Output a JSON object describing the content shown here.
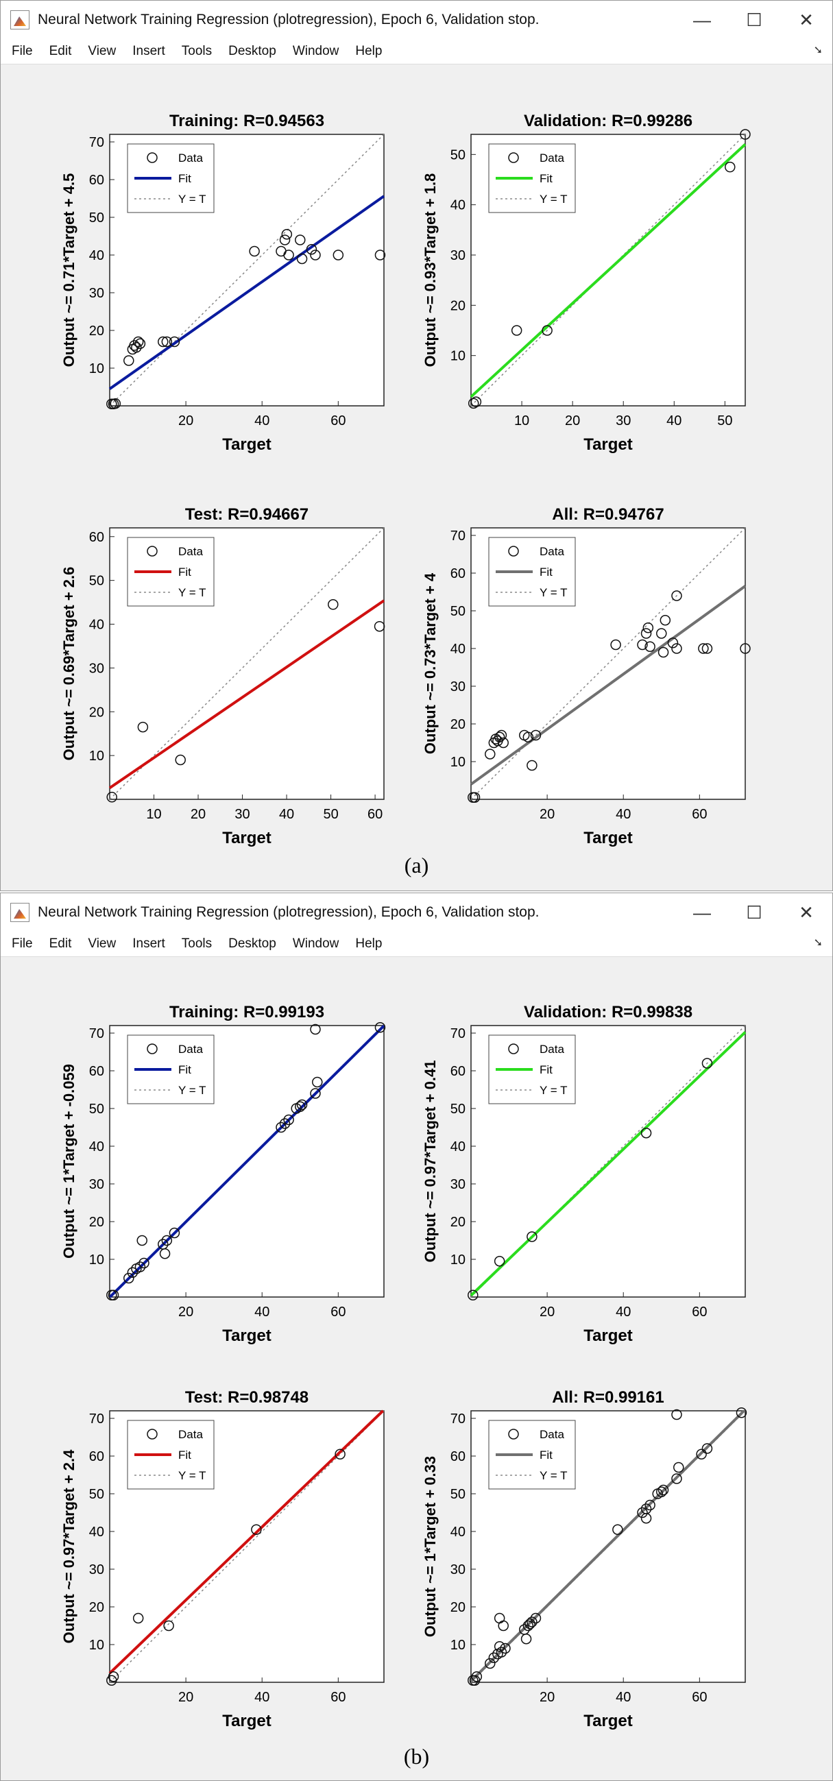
{
  "figures": [
    {
      "window_title": "Neural Network Training Regression (plotregression), Epoch 6, Validation stop.",
      "menu": [
        "File",
        "Edit",
        "View",
        "Insert",
        "Tools",
        "Desktop",
        "Window",
        "Help"
      ],
      "caption": "(a)"
    },
    {
      "window_title": "Neural Network Training Regression (plotregression), Epoch 6, Validation stop.",
      "menu": [
        "File",
        "Edit",
        "View",
        "Insert",
        "Tools",
        "Desktop",
        "Window",
        "Help"
      ],
      "caption": "(b)"
    }
  ],
  "window_controls": {
    "minimize": "—",
    "maximize": "☐",
    "close": "✕"
  },
  "legend_labels": {
    "data": "Data",
    "fit": "Fit",
    "identity": "Y = T"
  },
  "colors": {
    "training": "#0a1b9e",
    "validation": "#2bdc1e",
    "test": "#d01010",
    "all": "#707070",
    "identity": "#888888"
  },
  "chart_data": [
    {
      "type": "scatter",
      "title": "Training: R=0.94563",
      "xlabel": "Target",
      "ylabel": "Output ~= 0.71*Target + 4.5",
      "xlim": [
        0,
        72
      ],
      "ylim": [
        0,
        72
      ],
      "xticks": [
        20,
        40,
        60
      ],
      "yticks": [
        10,
        20,
        30,
        40,
        50,
        60,
        70
      ],
      "fit": {
        "slope": 0.71,
        "intercept": 4.5
      },
      "color_key": "training",
      "points": [
        [
          0.5,
          0.5
        ],
        [
          1,
          0.5
        ],
        [
          1.5,
          0.6
        ],
        [
          5,
          12
        ],
        [
          6,
          15
        ],
        [
          6.5,
          16
        ],
        [
          7,
          15.5
        ],
        [
          7.5,
          17
        ],
        [
          8,
          16.5
        ],
        [
          14,
          17
        ],
        [
          15,
          17
        ],
        [
          17,
          17
        ],
        [
          38,
          41
        ],
        [
          45,
          41
        ],
        [
          46,
          44
        ],
        [
          46.5,
          45.5
        ],
        [
          47,
          40
        ],
        [
          50,
          44
        ],
        [
          50.5,
          39
        ],
        [
          53,
          41.5
        ],
        [
          54,
          40
        ],
        [
          60,
          40
        ],
        [
          71,
          40
        ]
      ]
    },
    {
      "type": "scatter",
      "title": "Validation: R=0.99286",
      "xlabel": "Target",
      "ylabel": "Output ~= 0.93*Target + 1.8",
      "xlim": [
        0,
        54
      ],
      "ylim": [
        0,
        54
      ],
      "xticks": [
        10,
        20,
        30,
        40,
        50
      ],
      "yticks": [
        10,
        20,
        30,
        40,
        50
      ],
      "fit": {
        "slope": 0.93,
        "intercept": 1.8
      },
      "color_key": "validation",
      "points": [
        [
          0.5,
          0.5
        ],
        [
          1,
          0.8
        ],
        [
          9,
          15
        ],
        [
          15,
          15
        ],
        [
          51,
          47.5
        ],
        [
          54,
          54
        ]
      ]
    },
    {
      "type": "scatter",
      "title": "Test: R=0.94667",
      "xlabel": "Target",
      "ylabel": "Output ~= 0.69*Target + 2.6",
      "xlim": [
        0,
        62
      ],
      "ylim": [
        0,
        62
      ],
      "xticks": [
        10,
        20,
        30,
        40,
        50,
        60
      ],
      "yticks": [
        10,
        20,
        30,
        40,
        50,
        60
      ],
      "fit": {
        "slope": 0.69,
        "intercept": 2.6
      },
      "color_key": "test",
      "points": [
        [
          0.5,
          0.5
        ],
        [
          7.5,
          16.5
        ],
        [
          16,
          9
        ],
        [
          50.5,
          44.5
        ],
        [
          61,
          39.5
        ]
      ]
    },
    {
      "type": "scatter",
      "title": "All: R=0.94767",
      "xlabel": "Target",
      "ylabel": "Output ~= 0.73*Target + 4",
      "xlim": [
        0,
        72
      ],
      "ylim": [
        0,
        72
      ],
      "xticks": [
        20,
        40,
        60
      ],
      "yticks": [
        10,
        20,
        30,
        40,
        50,
        60,
        70
      ],
      "fit": {
        "slope": 0.73,
        "intercept": 4
      },
      "color_key": "all",
      "points": [
        [
          0.5,
          0.5
        ],
        [
          1,
          0.5
        ],
        [
          5,
          12
        ],
        [
          6,
          15
        ],
        [
          6.5,
          16
        ],
        [
          7,
          15.5
        ],
        [
          7.5,
          16.5
        ],
        [
          8,
          17
        ],
        [
          8.5,
          15
        ],
        [
          14,
          17
        ],
        [
          15,
          16.5
        ],
        [
          16,
          9
        ],
        [
          17,
          17
        ],
        [
          38,
          41
        ],
        [
          45,
          41
        ],
        [
          46,
          44
        ],
        [
          46.5,
          45.5
        ],
        [
          47,
          40.5
        ],
        [
          50,
          44
        ],
        [
          50.5,
          39
        ],
        [
          51,
          47.5
        ],
        [
          53,
          41.5
        ],
        [
          54,
          40
        ],
        [
          54,
          54
        ],
        [
          61,
          40
        ],
        [
          62,
          40
        ],
        [
          72,
          40
        ]
      ]
    },
    {
      "type": "scatter",
      "title": "Training: R=0.99193",
      "xlabel": "Target",
      "ylabel": "Output ~= 1*Target + -0.059",
      "xlim": [
        0,
        72
      ],
      "ylim": [
        0,
        72
      ],
      "xticks": [
        20,
        40,
        60
      ],
      "yticks": [
        10,
        20,
        30,
        40,
        50,
        60,
        70
      ],
      "fit": {
        "slope": 1,
        "intercept": -0.059
      },
      "color_key": "training",
      "points": [
        [
          0.5,
          0.5
        ],
        [
          1,
          0.5
        ],
        [
          5,
          5
        ],
        [
          6,
          6.5
        ],
        [
          7,
          7.5
        ],
        [
          8,
          8
        ],
        [
          8.5,
          15
        ],
        [
          9,
          9
        ],
        [
          14,
          14
        ],
        [
          14.5,
          11.5
        ],
        [
          15,
          15
        ],
        [
          17,
          17
        ],
        [
          45,
          45
        ],
        [
          46,
          46
        ],
        [
          47,
          47
        ],
        [
          49,
          50
        ],
        [
          50,
          50.5
        ],
        [
          50.5,
          51
        ],
        [
          54,
          54
        ],
        [
          54.5,
          57
        ],
        [
          54,
          71
        ],
        [
          71,
          71.5
        ]
      ]
    },
    {
      "type": "scatter",
      "title": "Validation: R=0.99838",
      "xlabel": "Target",
      "ylabel": "Output ~= 0.97*Target + 0.41",
      "xlim": [
        0,
        72
      ],
      "ylim": [
        0,
        72
      ],
      "xticks": [
        20,
        40,
        60
      ],
      "yticks": [
        10,
        20,
        30,
        40,
        50,
        60,
        70
      ],
      "fit": {
        "slope": 0.97,
        "intercept": 0.41
      },
      "color_key": "validation",
      "points": [
        [
          0.5,
          0.5
        ],
        [
          7.5,
          9.5
        ],
        [
          16,
          16
        ],
        [
          46,
          43.5
        ],
        [
          62,
          62
        ]
      ]
    },
    {
      "type": "scatter",
      "title": "Test: R=0.98748",
      "xlabel": "Target",
      "ylabel": "Output ~= 0.97*Target + 2.4",
      "xlim": [
        0,
        72
      ],
      "ylim": [
        0,
        72
      ],
      "xticks": [
        20,
        40,
        60
      ],
      "yticks": [
        10,
        20,
        30,
        40,
        50,
        60,
        70
      ],
      "fit": {
        "slope": 0.97,
        "intercept": 2.4
      },
      "color_key": "test",
      "points": [
        [
          0.5,
          0.5
        ],
        [
          1,
          1.5
        ],
        [
          7.5,
          17
        ],
        [
          15.5,
          15
        ],
        [
          38.5,
          40.5
        ],
        [
          60.5,
          60.5
        ]
      ]
    },
    {
      "type": "scatter",
      "title": "All: R=0.99161",
      "xlabel": "Target",
      "ylabel": "Output ~= 1*Target + 0.33",
      "xlim": [
        0,
        72
      ],
      "ylim": [
        0,
        72
      ],
      "xticks": [
        20,
        40,
        60
      ],
      "yticks": [
        10,
        20,
        30,
        40,
        50,
        60,
        70
      ],
      "fit": {
        "slope": 1,
        "intercept": 0.33
      },
      "color_key": "all",
      "points": [
        [
          0.5,
          0.5
        ],
        [
          1,
          0.5
        ],
        [
          1.5,
          1.5
        ],
        [
          5,
          5
        ],
        [
          6,
          6.5
        ],
        [
          7,
          7.5
        ],
        [
          7.5,
          9.5
        ],
        [
          7.5,
          17
        ],
        [
          8,
          8
        ],
        [
          8.5,
          15
        ],
        [
          9,
          9
        ],
        [
          14,
          14
        ],
        [
          14.5,
          11.5
        ],
        [
          15,
          15
        ],
        [
          15.5,
          15.5
        ],
        [
          16,
          16
        ],
        [
          17,
          17
        ],
        [
          38.5,
          40.5
        ],
        [
          45,
          45
        ],
        [
          46,
          46
        ],
        [
          46,
          43.5
        ],
        [
          47,
          47
        ],
        [
          49,
          50
        ],
        [
          50,
          50.5
        ],
        [
          50.5,
          51
        ],
        [
          54,
          54
        ],
        [
          54.5,
          57
        ],
        [
          54,
          71
        ],
        [
          60.5,
          60.5
        ],
        [
          62,
          62
        ],
        [
          71,
          71.5
        ]
      ]
    }
  ]
}
